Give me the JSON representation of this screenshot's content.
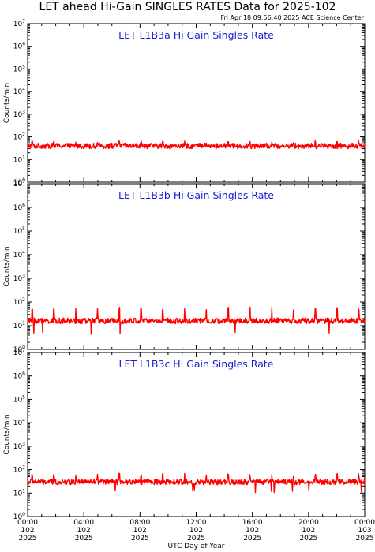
{
  "page_title": "LET ahead Hi-Gain SINGLES RATES Data for 2025-102",
  "timestamp": "Fri Apr 18 09:56:40 2025 ACE Science Center",
  "colors": {
    "series": "#ff0000",
    "panel_title": "#1a1ad6",
    "axes": "#000000"
  },
  "chart_data": [
    {
      "type": "line",
      "title": "LET L1B3a Hi Gain Singles Rate",
      "ylabel": "Counts/min",
      "yscale": "log",
      "ylim": [
        1,
        10000000
      ],
      "xlim": [
        0,
        24
      ],
      "series": [
        {
          "baseline": 40,
          "spike_peak": 70,
          "dip_min": 30
        }
      ]
    },
    {
      "type": "line",
      "title": "LET L1B3b Hi Gain Singles Rate",
      "ylabel": "Counts/min",
      "yscale": "log",
      "ylim": [
        1,
        10000000
      ],
      "xlim": [
        0,
        24
      ],
      "series": [
        {
          "baseline": 16,
          "spike_peak": 60,
          "dip_min": 4
        }
      ]
    },
    {
      "type": "line",
      "title": "LET L1B3c Hi Gain Singles Rate",
      "ylabel": "Counts/min",
      "yscale": "log",
      "ylim": [
        1,
        10000000
      ],
      "xlim": [
        0,
        24
      ],
      "series": [
        {
          "baseline": 30,
          "spike_peak": 70,
          "dip_min": 10
        }
      ]
    }
  ],
  "y_ticks": [
    {
      "base": "10",
      "exp": "0"
    },
    {
      "base": "10",
      "exp": "1"
    },
    {
      "base": "10",
      "exp": "2"
    },
    {
      "base": "10",
      "exp": "3"
    },
    {
      "base": "10",
      "exp": "4"
    },
    {
      "base": "10",
      "exp": "5"
    },
    {
      "base": "10",
      "exp": "6"
    },
    {
      "base": "10",
      "exp": "7"
    }
  ],
  "x_ticks": [
    {
      "hour": 0,
      "time": "00:00",
      "day": "102",
      "year": "2025"
    },
    {
      "hour": 4,
      "time": "04:00",
      "day": "102",
      "year": "2025"
    },
    {
      "hour": 8,
      "time": "08:00",
      "day": "102",
      "year": "2025"
    },
    {
      "hour": 12,
      "time": "12:00",
      "day": "102",
      "year": "2025"
    },
    {
      "hour": 16,
      "time": "16:00",
      "day": "102",
      "year": "2025"
    },
    {
      "hour": 20,
      "time": "20:00",
      "day": "102",
      "year": "2025"
    },
    {
      "hour": 24,
      "time": "00:00",
      "day": "103",
      "year": "2025"
    }
  ],
  "xlabel": "UTC Day of Year"
}
